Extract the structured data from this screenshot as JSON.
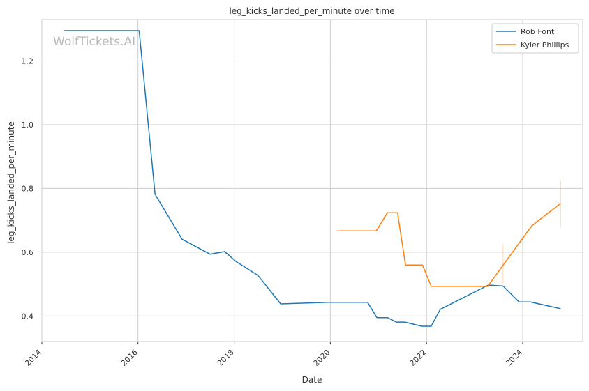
{
  "chart_data": {
    "type": "line",
    "title": "leg_kicks_landed_per_minute over time",
    "xlabel": "Date",
    "ylabel": "leg_kicks_landed_per_minute",
    "xlim": [
      "2014-01-01",
      "2025-04-01"
    ],
    "ylim": [
      0.32,
      1.33
    ],
    "xticks": [
      "2014",
      "2016",
      "2018",
      "2020",
      "2022",
      "2024"
    ],
    "yticks": [
      "0.4",
      "0.6",
      "0.8",
      "1.0",
      "1.2"
    ],
    "grid": true,
    "legend_position": "top-right",
    "watermark": "WolfTickets.AI",
    "series": [
      {
        "name": "Rob Font",
        "color": "#1f77b4",
        "points": [
          {
            "x": "2014-06-20",
            "y": 1.295
          },
          {
            "x": "2016-01-10",
            "y": 1.295
          },
          {
            "x": "2016-05-10",
            "y": 0.782
          },
          {
            "x": "2016-12-01",
            "y": 0.641
          },
          {
            "x": "2017-07-01",
            "y": 0.594
          },
          {
            "x": "2017-10-20",
            "y": 0.602
          },
          {
            "x": "2018-01-15",
            "y": 0.571
          },
          {
            "x": "2018-07-01",
            "y": 0.527
          },
          {
            "x": "2018-12-20",
            "y": 0.438
          },
          {
            "x": "2019-12-20",
            "y": 0.443
          },
          {
            "x": "2020-10-10",
            "y": 0.443
          },
          {
            "x": "2020-12-20",
            "y": 0.395
          },
          {
            "x": "2021-03-10",
            "y": 0.395
          },
          {
            "x": "2021-05-15",
            "y": 0.381
          },
          {
            "x": "2021-07-20",
            "y": 0.381
          },
          {
            "x": "2021-11-25",
            "y": 0.368
          },
          {
            "x": "2022-02-05",
            "y": 0.368
          },
          {
            "x": "2022-04-15",
            "y": 0.421
          },
          {
            "x": "2023-04-15",
            "y": 0.497
          },
          {
            "x": "2023-08-05",
            "y": 0.494
          },
          {
            "x": "2023-12-05",
            "y": 0.444
          },
          {
            "x": "2024-03-01",
            "y": 0.444
          },
          {
            "x": "2024-10-15",
            "y": 0.423
          }
        ]
      },
      {
        "name": "Kyler Phillips",
        "color": "#ff7f0e",
        "points": [
          {
            "x": "2020-02-20",
            "y": 0.667
          },
          {
            "x": "2020-12-15",
            "y": 0.667
          },
          {
            "x": "2021-03-10",
            "y": 0.724
          },
          {
            "x": "2021-05-25",
            "y": 0.724
          },
          {
            "x": "2021-07-25",
            "y": 0.56
          },
          {
            "x": "2021-12-01",
            "y": 0.56
          },
          {
            "x": "2022-02-05",
            "y": 0.493
          },
          {
            "x": "2023-04-10",
            "y": 0.493
          },
          {
            "x": "2024-03-10",
            "y": 0.683
          },
          {
            "x": "2024-10-15",
            "y": 0.753
          }
        ],
        "error_bars": [
          {
            "x": "2023-08-05",
            "low": 0.5,
            "high": 0.625
          },
          {
            "x": "2024-10-15",
            "low": 0.68,
            "high": 0.825
          }
        ]
      }
    ]
  }
}
